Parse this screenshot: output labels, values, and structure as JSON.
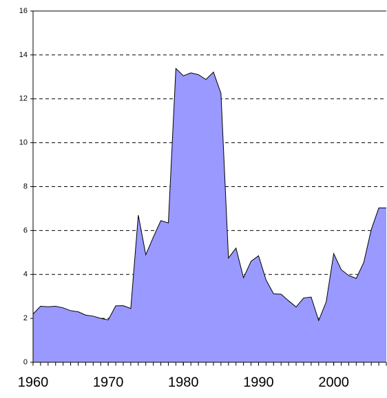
{
  "chart_data": {
    "type": "area",
    "x": [
      1960,
      1961,
      1962,
      1963,
      1964,
      1965,
      1966,
      1967,
      1968,
      1969,
      1970,
      1971,
      1972,
      1973,
      1974,
      1975,
      1976,
      1977,
      1978,
      1979,
      1980,
      1981,
      1982,
      1983,
      1984,
      1985,
      1986,
      1987,
      1988,
      1989,
      1990,
      1991,
      1992,
      1993,
      1994,
      1995,
      1996,
      1997,
      1998,
      1999,
      2000,
      2001,
      2002,
      2003,
      2004,
      2005,
      2006,
      2007
    ],
    "values": [
      2.2,
      2.55,
      2.53,
      2.55,
      2.48,
      2.35,
      2.3,
      2.15,
      2.1,
      2.0,
      1.93,
      2.57,
      2.58,
      2.45,
      6.7,
      4.9,
      5.7,
      6.45,
      6.35,
      13.38,
      13.05,
      13.18,
      13.1,
      12.88,
      13.22,
      12.25,
      4.75,
      5.2,
      3.85,
      4.6,
      4.85,
      3.75,
      3.12,
      3.1,
      2.8,
      2.52,
      2.93,
      2.97,
      1.9,
      2.75,
      4.95,
      4.22,
      3.95,
      3.82,
      4.55,
      6.05,
      7.03,
      7.03
    ],
    "color": "#9999ff",
    "xlim": [
      1960,
      2007
    ],
    "xticks": [
      1960,
      1970,
      1980,
      1990,
      2000
    ],
    "ylim": [
      0,
      16
    ],
    "yticks": [
      0,
      2,
      4,
      6,
      8,
      10,
      12,
      14,
      16
    ],
    "grid": true
  }
}
